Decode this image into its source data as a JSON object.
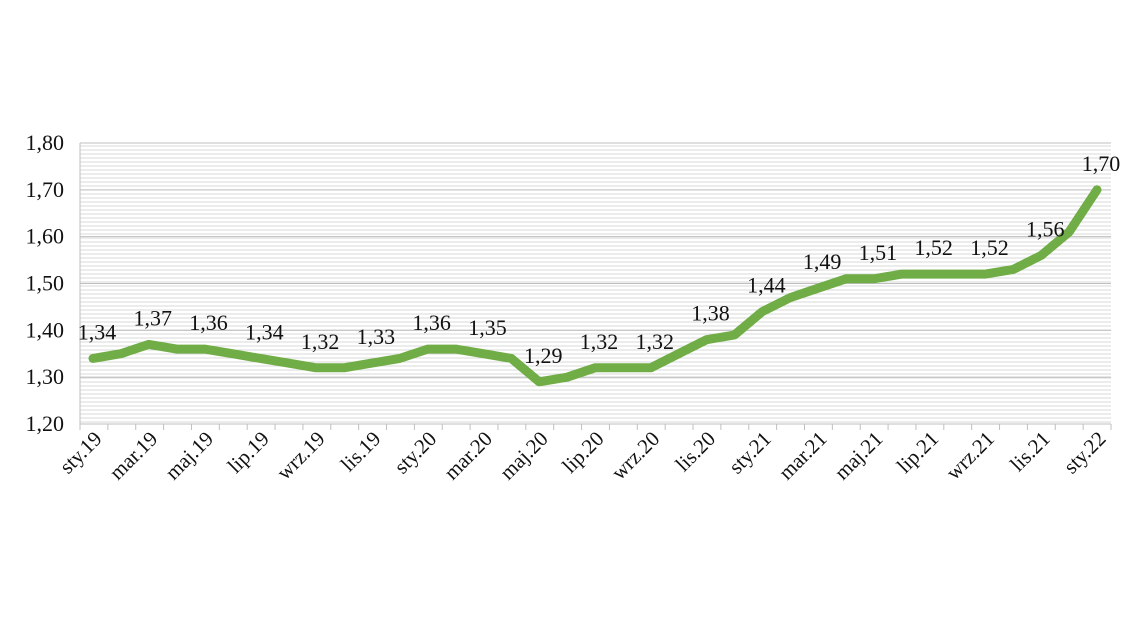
{
  "chart_data": {
    "type": "line",
    "title": "",
    "xlabel": "",
    "ylabel": "",
    "ylim": [
      1.2,
      1.8
    ],
    "yticks": [
      "1,20",
      "1,30",
      "1,40",
      "1,50",
      "1,60",
      "1,70",
      "1,80"
    ],
    "grid": true,
    "legend": "none",
    "x_tick_labels": [
      "sty.19",
      "mar.19",
      "maj.19",
      "lip.19",
      "wrz.19",
      "lis.19",
      "sty.20",
      "mar.20",
      "maj.20",
      "lip.20",
      "wrz.20",
      "lis.20",
      "sty.21",
      "mar.21",
      "maj.21",
      "lip.21",
      "wrz.21",
      "lis.21",
      "sty.22"
    ],
    "series": [
      {
        "color": "#70ad47",
        "values": [
          1.34,
          1.35,
          1.37,
          1.36,
          1.36,
          1.35,
          1.34,
          1.33,
          1.32,
          1.32,
          1.33,
          1.34,
          1.36,
          1.36,
          1.35,
          1.34,
          1.29,
          1.3,
          1.32,
          1.32,
          1.32,
          1.35,
          1.38,
          1.39,
          1.44,
          1.47,
          1.49,
          1.51,
          1.51,
          1.52,
          1.52,
          1.52,
          1.52,
          1.53,
          1.56,
          1.61,
          1.7
        ],
        "data_labels": [
          {
            "index": 0,
            "text": "1,34"
          },
          {
            "index": 2,
            "text": "1,37"
          },
          {
            "index": 4,
            "text": "1,36"
          },
          {
            "index": 6,
            "text": "1,34"
          },
          {
            "index": 8,
            "text": "1,32"
          },
          {
            "index": 10,
            "text": "1,33"
          },
          {
            "index": 12,
            "text": "1,36"
          },
          {
            "index": 14,
            "text": "1,35"
          },
          {
            "index": 16,
            "text": "1,29"
          },
          {
            "index": 18,
            "text": "1,32"
          },
          {
            "index": 20,
            "text": "1,32"
          },
          {
            "index": 22,
            "text": "1,38"
          },
          {
            "index": 24,
            "text": "1,44"
          },
          {
            "index": 26,
            "text": "1,49"
          },
          {
            "index": 28,
            "text": "1,51"
          },
          {
            "index": 30,
            "text": "1,52"
          },
          {
            "index": 32,
            "text": "1,52"
          },
          {
            "index": 34,
            "text": "1,56"
          },
          {
            "index": 36,
            "text": "1,70"
          }
        ]
      }
    ]
  }
}
